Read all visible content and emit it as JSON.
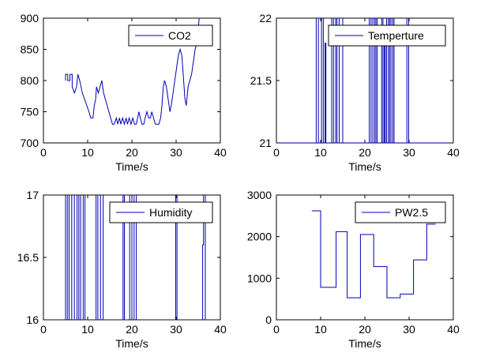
{
  "chart_data": [
    {
      "type": "line",
      "xlabel": "Time/s",
      "ylabel": "",
      "xlim": [
        0,
        40
      ],
      "ylim": [
        700,
        900
      ],
      "xticks": [
        0,
        10,
        20,
        30,
        40
      ],
      "yticks": [
        700,
        750,
        800,
        850,
        900
      ],
      "legend_placement": "top-right",
      "grid": false,
      "series": [
        {
          "name": "CO2",
          "color": "#0000b4",
          "points": [
            [
              5,
              800
            ],
            [
              5,
              810
            ],
            [
              5.5,
              810
            ],
            [
              5.5,
              800
            ],
            [
              6,
              800
            ],
            [
              6,
              810
            ],
            [
              6.5,
              810
            ],
            [
              6.5,
              790
            ],
            [
              7,
              780
            ],
            [
              7.5,
              790
            ],
            [
              7.8,
              810
            ],
            [
              8.2,
              800
            ],
            [
              8.8,
              780
            ],
            [
              9.3,
              770
            ],
            [
              9.8,
              760
            ],
            [
              10.3,
              750
            ],
            [
              10.7,
              740
            ],
            [
              11.2,
              740
            ],
            [
              11.5,
              760
            ],
            [
              11.8,
              770
            ],
            [
              12,
              790
            ],
            [
              12.4,
              780
            ],
            [
              12.8,
              790
            ],
            [
              13.2,
              800
            ],
            [
              13.6,
              780
            ],
            [
              14,
              770
            ],
            [
              14.4,
              760
            ],
            [
              14.8,
              750
            ],
            [
              15.2,
              740
            ],
            [
              15.6,
              730
            ],
            [
              16,
              730
            ],
            [
              16.5,
              740
            ],
            [
              16.8,
              730
            ],
            [
              17.2,
              740
            ],
            [
              17.5,
              730
            ],
            [
              17.9,
              740
            ],
            [
              18.3,
              730
            ],
            [
              18.7,
              740
            ],
            [
              19,
              730
            ],
            [
              19.4,
              740
            ],
            [
              19.8,
              730
            ],
            [
              20.2,
              740
            ],
            [
              20.6,
              730
            ],
            [
              21,
              730
            ],
            [
              21.3,
              740
            ],
            [
              21.6,
              750
            ],
            [
              21.9,
              740
            ],
            [
              22.3,
              730
            ],
            [
              22.7,
              730
            ],
            [
              23,
              740
            ],
            [
              23.4,
              750
            ],
            [
              23.8,
              740
            ],
            [
              24.2,
              740
            ],
            [
              24.5,
              750
            ],
            [
              24.9,
              740
            ],
            [
              25.3,
              730
            ],
            [
              25.7,
              730
            ],
            [
              26.1,
              730
            ],
            [
              26.5,
              740
            ],
            [
              26.8,
              760
            ],
            [
              27.1,
              790
            ],
            [
              27.4,
              800
            ],
            [
              27.8,
              790
            ],
            [
              28.2,
              770
            ],
            [
              28.6,
              750
            ],
            [
              28.9,
              760
            ],
            [
              29.3,
              780
            ],
            [
              29.7,
              800
            ],
            [
              30.1,
              820
            ],
            [
              30.5,
              840
            ],
            [
              30.9,
              850
            ],
            [
              31.3,
              840
            ],
            [
              31.7,
              800
            ],
            [
              32,
              770
            ],
            [
              32.3,
              760
            ],
            [
              32.7,
              790
            ],
            [
              33.1,
              800
            ],
            [
              33.5,
              810
            ],
            [
              33.9,
              830
            ],
            [
              34.3,
              850
            ],
            [
              34.7,
              860
            ],
            [
              35,
              880
            ],
            [
              35.2,
              900
            ]
          ]
        }
      ]
    },
    {
      "type": "line",
      "xlabel": "Time/s",
      "ylabel": "",
      "xlim": [
        0,
        40
      ],
      "ylim": [
        21,
        22
      ],
      "xticks": [
        0,
        10,
        20,
        30,
        40
      ],
      "yticks": [
        21,
        21.5,
        22
      ],
      "yticklabels": [
        "21",
        "21.5",
        "22"
      ],
      "legend_placement": "top-right",
      "grid": false,
      "series": [
        {
          "name": "Temperture",
          "color": "#0000b4",
          "points": [
            [
              0,
              21
            ],
            [
              9,
              21
            ],
            [
              9,
              22
            ],
            [
              9.5,
              22
            ],
            [
              9.5,
              21
            ],
            [
              10.2,
              21
            ],
            [
              10.2,
              22
            ],
            [
              10.6,
              22
            ],
            [
              10.6,
              21
            ],
            [
              11,
              21
            ],
            [
              11,
              21.8
            ],
            [
              11.2,
              21.8
            ],
            [
              11.2,
              21
            ],
            [
              12.5,
              21
            ],
            [
              12.5,
              22
            ],
            [
              12.9,
              22
            ],
            [
              12.9,
              21
            ],
            [
              13.4,
              21
            ],
            [
              13.4,
              22
            ],
            [
              13.7,
              22
            ],
            [
              13.7,
              21
            ],
            [
              14.2,
              21
            ],
            [
              14.2,
              22
            ],
            [
              15,
              22
            ],
            [
              15,
              21
            ],
            [
              21,
              21
            ],
            [
              21,
              22
            ],
            [
              21.4,
              22
            ],
            [
              21.4,
              21
            ],
            [
              21.8,
              21
            ],
            [
              21.8,
              22
            ],
            [
              22.2,
              22
            ],
            [
              22.2,
              21
            ],
            [
              22.5,
              21
            ],
            [
              22.5,
              22
            ],
            [
              22.8,
              22
            ],
            [
              22.8,
              21
            ],
            [
              23.8,
              21
            ],
            [
              23.8,
              22
            ],
            [
              24.1,
              22
            ],
            [
              24.1,
              21
            ],
            [
              24.4,
              21
            ],
            [
              24.4,
              21.8
            ],
            [
              24.6,
              21.8
            ],
            [
              24.6,
              21
            ],
            [
              24.9,
              21
            ],
            [
              24.9,
              22
            ],
            [
              25.3,
              22
            ],
            [
              25.3,
              21
            ],
            [
              25.6,
              21
            ],
            [
              25.6,
              22
            ],
            [
              25.9,
              22
            ],
            [
              25.9,
              21
            ],
            [
              26.3,
              21
            ],
            [
              26.3,
              22
            ],
            [
              26.6,
              22
            ],
            [
              26.6,
              21
            ],
            [
              29.5,
              21
            ],
            [
              29.5,
              22
            ],
            [
              29.9,
              22
            ],
            [
              29.9,
              21
            ],
            [
              40,
              21
            ]
          ]
        }
      ]
    },
    {
      "type": "line",
      "xlabel": "Time/s",
      "ylabel": "",
      "xlim": [
        0,
        40
      ],
      "ylim": [
        16,
        17
      ],
      "xticks": [
        0,
        10,
        20,
        30,
        40
      ],
      "yticks": [
        16,
        16.5,
        17
      ],
      "yticklabels": [
        "16",
        "16.5",
        "17"
      ],
      "legend_placement": "top-right",
      "grid": false,
      "series": [
        {
          "name": "Humidity",
          "color": "#0000b4",
          "points": [
            [
              0,
              16
            ],
            [
              5,
              16
            ],
            [
              5,
              17
            ],
            [
              5.4,
              17
            ],
            [
              5.4,
              16
            ],
            [
              5.8,
              16
            ],
            [
              5.8,
              17
            ],
            [
              6.4,
              17
            ],
            [
              6.4,
              16
            ],
            [
              7,
              16
            ],
            [
              7,
              17
            ],
            [
              7.6,
              17
            ],
            [
              7.6,
              16
            ],
            [
              8,
              16
            ],
            [
              8,
              17
            ],
            [
              8.4,
              17
            ],
            [
              8.4,
              16
            ],
            [
              9,
              16
            ],
            [
              9,
              17
            ],
            [
              9.4,
              17
            ],
            [
              9.4,
              16
            ],
            [
              11.9,
              16
            ],
            [
              11.9,
              17
            ],
            [
              12.3,
              17
            ],
            [
              12.3,
              16
            ],
            [
              12.9,
              16
            ],
            [
              12.9,
              17
            ],
            [
              13.5,
              17
            ],
            [
              13.5,
              16
            ],
            [
              18,
              16
            ],
            [
              18,
              17
            ],
            [
              18.3,
              17
            ],
            [
              18.3,
              16
            ],
            [
              19.5,
              16
            ],
            [
              19.5,
              17
            ],
            [
              20,
              17
            ],
            [
              20,
              16
            ],
            [
              20.5,
              16
            ],
            [
              20.5,
              17
            ],
            [
              21,
              17
            ],
            [
              21,
              16
            ],
            [
              29.9,
              16
            ],
            [
              29.9,
              17
            ],
            [
              30.2,
              17
            ],
            [
              30.2,
              16
            ],
            [
              36,
              16
            ],
            [
              36,
              16.6
            ],
            [
              36.2,
              16.6
            ],
            [
              36.2,
              17
            ],
            [
              36.6,
              17
            ],
            [
              36.6,
              16
            ],
            [
              40,
              16
            ]
          ]
        }
      ]
    },
    {
      "type": "line",
      "xlabel": "Time/s",
      "ylabel": "",
      "xlim": [
        0,
        40
      ],
      "ylim": [
        0,
        3000
      ],
      "xticks": [
        0,
        10,
        20,
        30,
        40
      ],
      "yticks": [
        0,
        1000,
        2000,
        3000
      ],
      "legend_placement": "top-right",
      "grid": false,
      "series": [
        {
          "name": "PW2.5",
          "color": "#0000b4",
          "points": [
            [
              8,
              2620
            ],
            [
              10,
              2620
            ],
            [
              10,
              780
            ],
            [
              13.5,
              780
            ],
            [
              13.5,
              2120
            ],
            [
              16,
              2120
            ],
            [
              16,
              530
            ],
            [
              19,
              530
            ],
            [
              19,
              2050
            ],
            [
              22,
              2050
            ],
            [
              22,
              1280
            ],
            [
              25,
              1280
            ],
            [
              25,
              530
            ],
            [
              28,
              530
            ],
            [
              28,
              620
            ],
            [
              31,
              620
            ],
            [
              31,
              1440
            ],
            [
              34,
              1440
            ],
            [
              34,
              2300
            ],
            [
              36,
              2300
            ]
          ]
        }
      ]
    }
  ]
}
